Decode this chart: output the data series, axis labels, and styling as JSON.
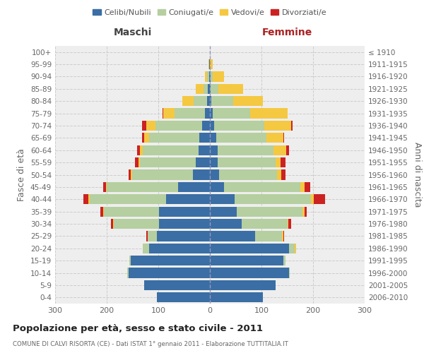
{
  "age_groups": [
    "0-4",
    "5-9",
    "10-14",
    "15-19",
    "20-24",
    "25-29",
    "30-34",
    "35-39",
    "40-44",
    "45-49",
    "50-54",
    "55-59",
    "60-64",
    "65-69",
    "70-74",
    "75-79",
    "80-84",
    "85-89",
    "90-94",
    "95-99",
    "100+"
  ],
  "birth_years": [
    "2006-2010",
    "2001-2005",
    "1996-2000",
    "1991-1995",
    "1986-1990",
    "1981-1985",
    "1976-1980",
    "1971-1975",
    "1966-1970",
    "1961-1965",
    "1956-1960",
    "1951-1955",
    "1946-1950",
    "1941-1945",
    "1936-1940",
    "1931-1935",
    "1926-1930",
    "1921-1925",
    "1916-1920",
    "1911-1915",
    "≤ 1910"
  ],
  "colors": {
    "celibe": "#3a6ea5",
    "coniugato": "#b5cfa0",
    "vedovo": "#f5c842",
    "divorziato": "#cc2222"
  },
  "maschi": {
    "celibe": [
      103,
      128,
      158,
      153,
      118,
      103,
      98,
      98,
      85,
      62,
      33,
      28,
      22,
      20,
      15,
      10,
      5,
      4,
      2,
      1,
      0
    ],
    "coniugato": [
      0,
      0,
      2,
      3,
      12,
      18,
      88,
      108,
      148,
      138,
      118,
      108,
      108,
      98,
      90,
      58,
      27,
      8,
      3,
      0,
      0
    ],
    "vedovo": [
      0,
      0,
      0,
      0,
      0,
      0,
      1,
      1,
      2,
      2,
      2,
      3,
      5,
      10,
      18,
      22,
      22,
      15,
      5,
      2,
      0
    ],
    "divorziato": [
      0,
      0,
      0,
      0,
      0,
      2,
      5,
      5,
      10,
      5,
      5,
      6,
      6,
      3,
      8,
      2,
      0,
      0,
      0,
      0,
      0
    ]
  },
  "femmine": {
    "nubile": [
      103,
      128,
      153,
      143,
      153,
      88,
      62,
      52,
      48,
      28,
      18,
      15,
      15,
      12,
      8,
      5,
      3,
      2,
      1,
      0,
      0
    ],
    "coniugata": [
      0,
      0,
      2,
      4,
      12,
      52,
      88,
      128,
      148,
      148,
      112,
      112,
      108,
      98,
      98,
      73,
      42,
      15,
      5,
      0,
      0
    ],
    "vedova": [
      0,
      0,
      0,
      0,
      2,
      2,
      2,
      3,
      5,
      8,
      8,
      10,
      25,
      32,
      52,
      73,
      58,
      48,
      22,
      5,
      0
    ],
    "divorziata": [
      0,
      0,
      0,
      0,
      0,
      2,
      5,
      5,
      22,
      10,
      8,
      10,
      5,
      2,
      2,
      0,
      0,
      0,
      0,
      0,
      0
    ]
  },
  "xlim": 300,
  "title": "Popolazione per età, sesso e stato civile - 2011",
  "subtitle": "COMUNE DI CALVI RISORTA (CE) - Dati ISTAT 1° gennaio 2011 - Elaborazione TUTTITALIA.IT",
  "xlabel_left": "Maschi",
  "xlabel_right": "Femmine",
  "ylabel_left": "Fasce di età",
  "ylabel_right": "Anni di nascita",
  "background": "#ffffff",
  "plot_bg": "#eeeeee",
  "grid_color": "#cccccc"
}
